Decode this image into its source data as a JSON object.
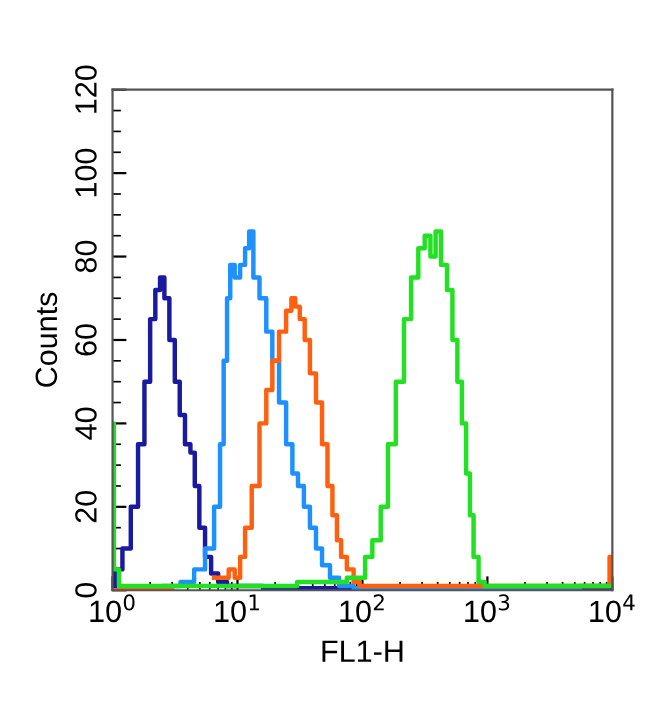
{
  "chart_data": {
    "type": "step",
    "xlabel": "FL1-H",
    "ylabel": "Counts",
    "log": "x",
    "xlim": [
      1,
      10000
    ],
    "xticks": [
      {
        "value": 1,
        "label": "10$^{0}$"
      },
      {
        "value": 10,
        "label": "10$^{1}$"
      },
      {
        "value": 100,
        "label": "10$^{2}$"
      },
      {
        "value": 1000,
        "label": "10$^{3}$"
      },
      {
        "value": 10000,
        "label": "10$^{4}$"
      }
    ],
    "ylim": [
      0,
      120
    ],
    "yticks": [
      0,
      20,
      40,
      60,
      80,
      100,
      120
    ],
    "grid": false,
    "series": [
      {
        "color": "#1a1aa0",
        "x": [
          1,
          1.1,
          1.3,
          1.5,
          1.7,
          1.9,
          2.1,
          2.3,
          2.5,
          2.7,
          3.0,
          3.3,
          3.6,
          4.0,
          4.4,
          4.7,
          5.2,
          5.8,
          6.5,
          7.5,
          9,
          12,
          20,
          50,
          100,
          1000,
          10000
        ],
        "values": [
          0,
          5,
          10,
          20,
          35,
          50,
          65,
          72,
          75,
          70,
          60,
          50,
          42,
          35,
          33,
          25,
          15,
          8,
          4,
          2,
          1,
          1,
          0.5,
          0.5,
          0,
          0,
          0
        ]
      },
      {
        "color": "#1e90ff",
        "x": [
          2,
          3,
          4,
          5,
          6,
          7,
          7.5,
          8,
          8.5,
          9,
          10,
          11,
          12,
          12.8,
          14,
          16,
          18,
          20,
          23,
          26,
          29,
          32,
          36,
          40,
          45,
          50,
          60,
          70,
          100,
          1000,
          10000
        ],
        "values": [
          0,
          1,
          2,
          5,
          10,
          20,
          35,
          55,
          70,
          78,
          75,
          78,
          82,
          86,
          75,
          70,
          62,
          55,
          45,
          35,
          28,
          25,
          20,
          15,
          10,
          6,
          3,
          1,
          0.5,
          0.5,
          1
        ]
      },
      {
        "color": "#ff6010",
        "x": [
          1,
          5,
          8,
          9,
          10,
          11,
          12,
          14,
          16,
          18,
          20,
          23,
          26,
          28,
          30,
          33,
          36,
          40,
          45,
          50,
          55,
          60,
          65,
          70,
          80,
          90,
          100,
          1000,
          9000,
          10000
        ],
        "values": [
          0,
          null,
          3,
          5,
          3,
          8,
          15,
          25,
          40,
          48,
          55,
          62,
          67,
          70,
          68,
          65,
          60,
          52,
          45,
          35,
          25,
          18,
          12,
          8,
          5,
          2,
          1,
          1,
          1,
          8
        ]
      },
      {
        "color": "#22e022",
        "x": [
          1,
          1.05,
          1.2,
          10,
          50,
          100,
          110,
          130,
          150,
          170,
          200,
          230,
          260,
          300,
          330,
          370,
          400,
          450,
          500,
          550,
          600,
          650,
          700,
          750,
          800,
          900,
          1000,
          10000
        ],
        "values": [
          40,
          5,
          1,
          1,
          2,
          3,
          8,
          12,
          20,
          35,
          50,
          65,
          75,
          82,
          85,
          80,
          86,
          78,
          72,
          60,
          50,
          40,
          28,
          18,
          8,
          2,
          1,
          1
        ]
      }
    ]
  }
}
